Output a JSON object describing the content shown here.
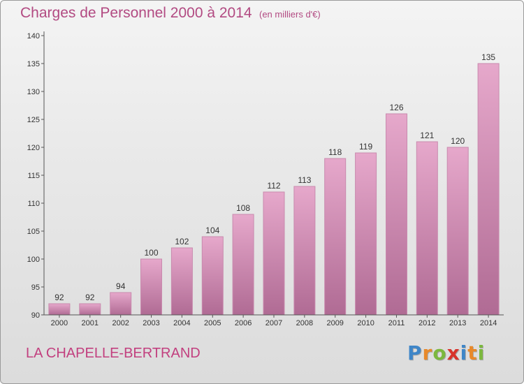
{
  "header": {
    "title": "Charges de Personnel 2000 à 2014",
    "subtitle": "(en milliers d'€)"
  },
  "footer": {
    "commune": "LA CHAPELLE-BERTRAND",
    "logo": {
      "letters": [
        "P",
        "r",
        "o",
        "x",
        "i",
        "t",
        "i"
      ],
      "colors": [
        "#3f86c8",
        "#e8892a",
        "#7cb83e",
        "#d8342c",
        "#3f86c8",
        "#e8892a",
        "#7cb83e"
      ]
    }
  },
  "chart_data": {
    "type": "bar",
    "title": "Charges de Personnel 2000 à 2014",
    "categories": [
      "2000",
      "2001",
      "2002",
      "2003",
      "2004",
      "2005",
      "2006",
      "2007",
      "2008",
      "2009",
      "2010",
      "2011",
      "2012",
      "2013",
      "2014"
    ],
    "values": [
      92,
      92,
      94,
      100,
      102,
      104,
      108,
      112,
      113,
      118,
      119,
      126,
      121,
      120,
      135
    ],
    "data_labels": [
      "92",
      "92",
      "94",
      "100",
      "102",
      "104",
      "108",
      "112",
      "113",
      "118",
      "119",
      "126",
      "121",
      "120",
      "135"
    ],
    "ylim": [
      90,
      140
    ],
    "yticks": [
      90,
      95,
      100,
      105,
      110,
      115,
      120,
      125,
      130,
      135,
      140
    ],
    "xlabel": "",
    "ylabel": "",
    "grid": false,
    "colors": {
      "bar_top": "#e6a8cb",
      "bar_bottom": "#b06b94",
      "bar_edge": "#c98aae",
      "label_title": "#b24a82"
    }
  }
}
